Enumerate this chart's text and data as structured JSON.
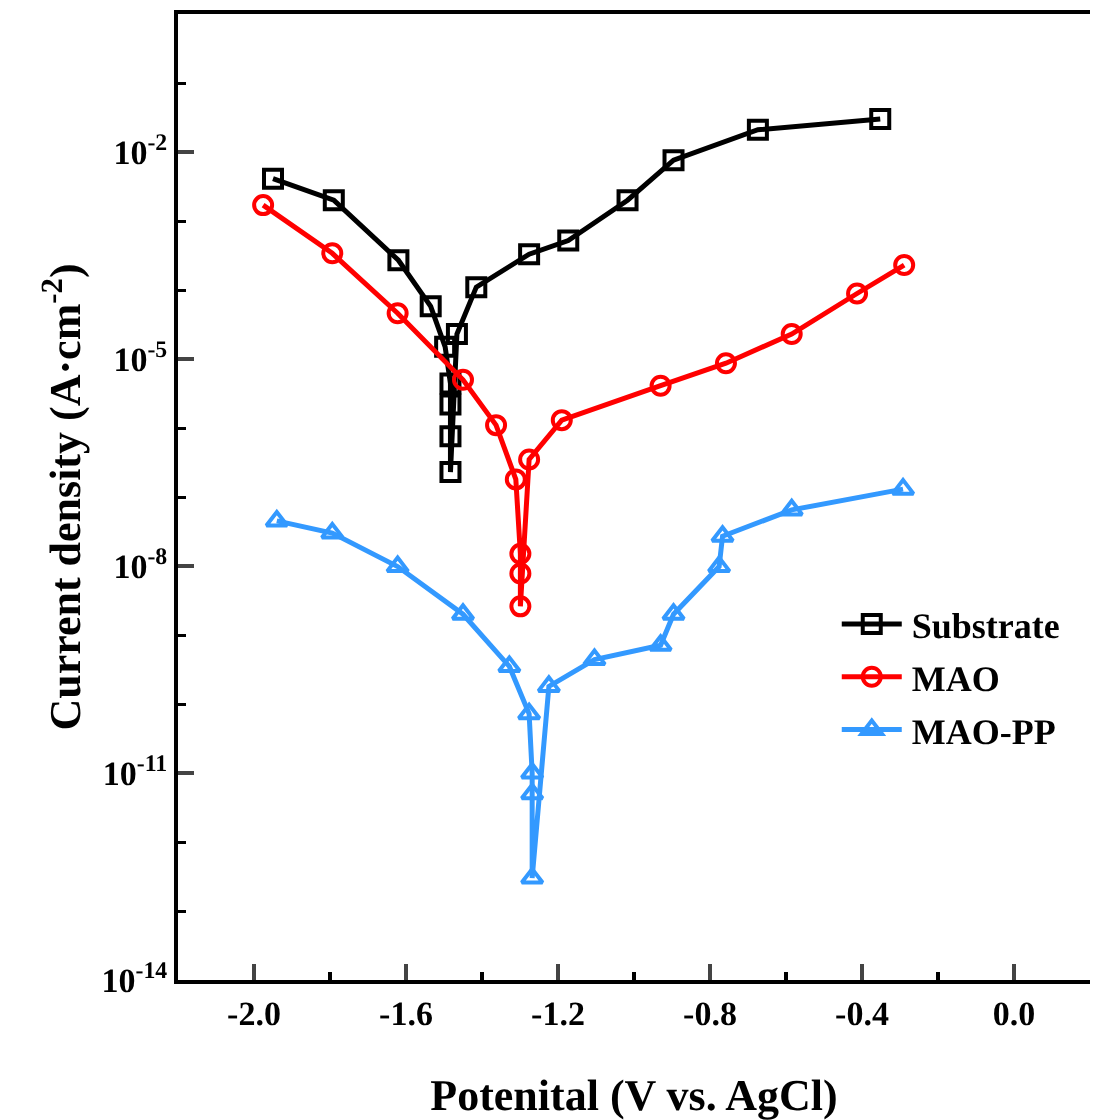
{
  "chart_data": {
    "type": "line",
    "xlabel": "Potenital (V vs. AgCl)",
    "ylabel": "Current density (A·cm$^{-2}$)",
    "xlim": [
      -2.2,
      0.2
    ],
    "xticks": [
      {
        "value": -2,
        "label": "-2.0"
      },
      {
        "value": -1.6,
        "label": "-1.6"
      },
      {
        "value": -1.2,
        "label": "-1.2"
      },
      {
        "value": -0.8,
        "label": "-0.8"
      },
      {
        "value": -0.4,
        "label": "-0.4"
      },
      {
        "value": 0,
        "label": "0.0"
      }
    ],
    "ylim": [
      1e-14,
      1
    ],
    "yticks": [
      {
        "value": 1e-14,
        "label": "10$^{-14}$"
      },
      {
        "value": 1e-11,
        "label": "10$^{-11}$"
      },
      {
        "value": 1e-08,
        "label": "10$^{-8}$"
      },
      {
        "value": 1e-05,
        "label": "10$^{-5}$"
      },
      {
        "value": 0.01,
        "label": "10$^{-2}$"
      }
    ],
    "log": "y",
    "grid": false,
    "legend": "bottom right",
    "line_style": "solid",
    "series": [
      {
        "name": "Substrate",
        "color": "#000000",
        "marker": "square",
        "x": [
          -1.95,
          -1.79,
          -1.62,
          -1.535,
          -1.497,
          -1.483,
          -1.483,
          -1.483,
          -1.483,
          -1.466,
          -1.415,
          -1.276,
          -1.173,
          -1.017,
          -0.896,
          -0.674,
          -0.352
        ],
        "values": [
          0.0041,
          0.002,
          0.00027,
          5.8e-05,
          1.5e-05,
          4.4e-06,
          2.2e-06,
          7.6e-07,
          2.3e-07,
          2.3e-05,
          0.00011,
          0.00033,
          0.00052,
          0.002,
          0.0076,
          0.021,
          0.03
        ]
      },
      {
        "name": "MAO",
        "color": "#ff0000",
        "marker": "circle",
        "x": [
          -1.976,
          -1.794,
          -1.622,
          -1.45,
          -1.363,
          -1.311,
          -1.299,
          -1.299,
          -1.299,
          -1.276,
          -1.19,
          -0.93,
          -0.758,
          -0.585,
          -0.413,
          -0.289
        ],
        "values": [
          0.0017,
          0.00034,
          4.6e-05,
          5e-06,
          1.1e-06,
          1.8e-07,
          1.5e-08,
          7.8e-09,
          2.6e-09,
          3.5e-07,
          1.3e-06,
          4.1e-06,
          8.7e-06,
          2.3e-05,
          8.9e-05,
          0.00023
        ]
      },
      {
        "name": "MAO-PP",
        "color": "#3399ff",
        "marker": "triangle",
        "x": [
          -1.94,
          -1.794,
          -1.622,
          -1.45,
          -1.328,
          -1.276,
          -1.268,
          -1.268,
          -1.268,
          -1.224,
          -1.104,
          -0.93,
          -0.896,
          -0.776,
          -0.767,
          -0.585,
          -0.292
        ],
        "values": [
          4.5e-08,
          3e-08,
          9.8e-09,
          2e-09,
          3.5e-10,
          7.2e-11,
          1e-11,
          5e-12,
          3e-13,
          1.8e-10,
          4.4e-10,
          7.1e-10,
          2e-09,
          9.8e-09,
          2.7e-08,
          6.5e-08,
          1.3e-07
        ]
      }
    ]
  }
}
